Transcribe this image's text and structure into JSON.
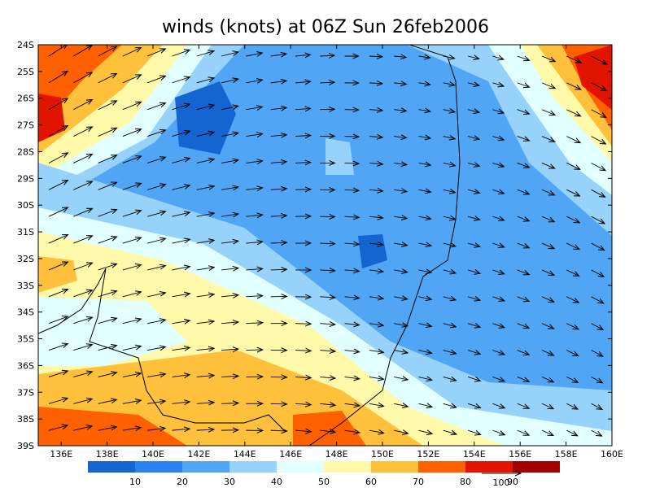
{
  "title": "winds (knots) at 06Z Sun 26feb2006",
  "lat_labels": [
    "24S",
    "25S",
    "26S",
    "27S",
    "28S",
    "29S",
    "30S",
    "31S",
    "32S",
    "33S",
    "34S",
    "35S",
    "36S",
    "37S",
    "38S",
    "39S"
  ],
  "lon_labels": [
    "136E",
    "138E",
    "140E",
    "142E",
    "144E",
    "146E",
    "148E",
    "150E",
    "152E",
    "154E",
    "156E",
    "158E",
    "160E"
  ],
  "colorbar": {
    "colors": [
      "#1464d2",
      "#2882f0",
      "#50a5f5",
      "#96d2fa",
      "#e1ffff",
      "#fffaaa",
      "#ffc03c",
      "#ff6000",
      "#e11400",
      "#a50000"
    ],
    "labels": [
      10,
      20,
      30,
      40,
      50,
      60,
      70,
      80,
      90
    ]
  },
  "reference_vector": "100"
}
